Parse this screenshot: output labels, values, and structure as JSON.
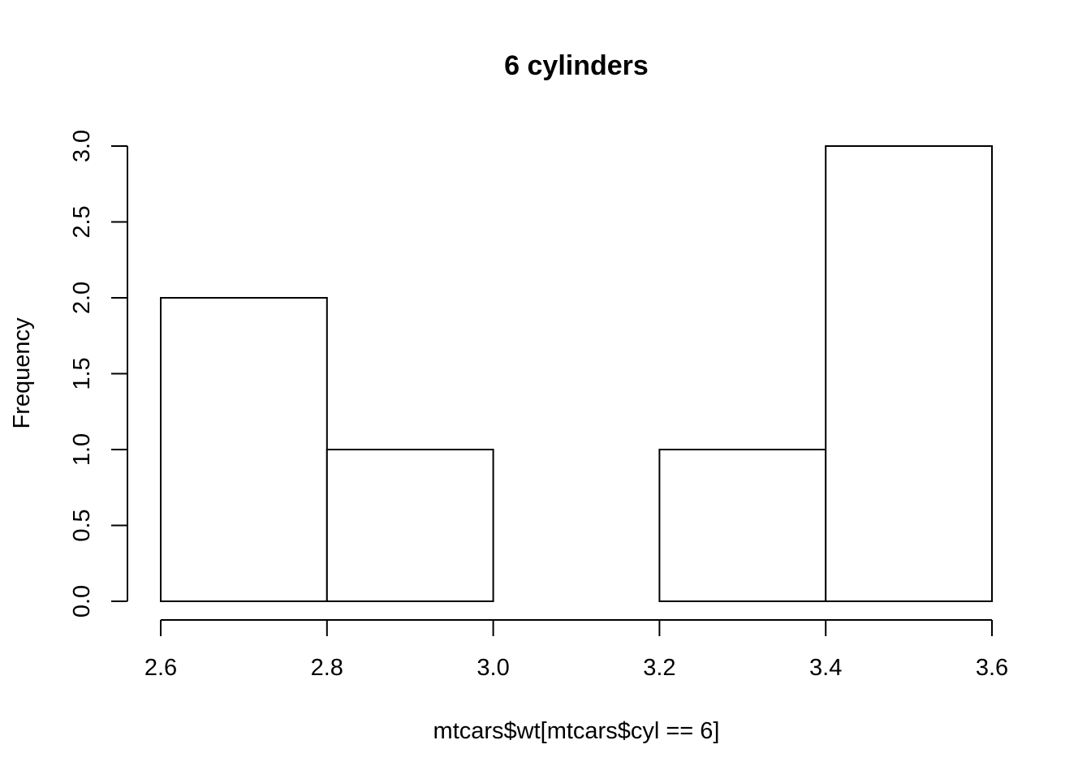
{
  "chart_data": {
    "type": "bar",
    "subtype": "histogram",
    "title": "6 cylinders",
    "xlabel": "mtcars$wt[mtcars$cyl == 6]",
    "ylabel": "Frequency",
    "bins": [
      {
        "x0": 2.6,
        "x1": 2.8,
        "count": 2
      },
      {
        "x0": 2.8,
        "x1": 3.0,
        "count": 1
      },
      {
        "x0": 3.0,
        "x1": 3.2,
        "count": 0
      },
      {
        "x0": 3.2,
        "x1": 3.4,
        "count": 1
      },
      {
        "x0": 3.4,
        "x1": 3.6,
        "count": 3
      }
    ],
    "xlim": [
      2.6,
      3.6
    ],
    "ylim": [
      0,
      3
    ],
    "xticks": [
      "2.6",
      "2.8",
      "3.0",
      "3.2",
      "3.4",
      "3.6"
    ],
    "yticks": [
      "0.0",
      "0.5",
      "1.0",
      "1.5",
      "2.0",
      "2.5",
      "3.0"
    ],
    "grid": false,
    "bar_fill": "#ffffff",
    "bar_stroke": "#000000"
  }
}
